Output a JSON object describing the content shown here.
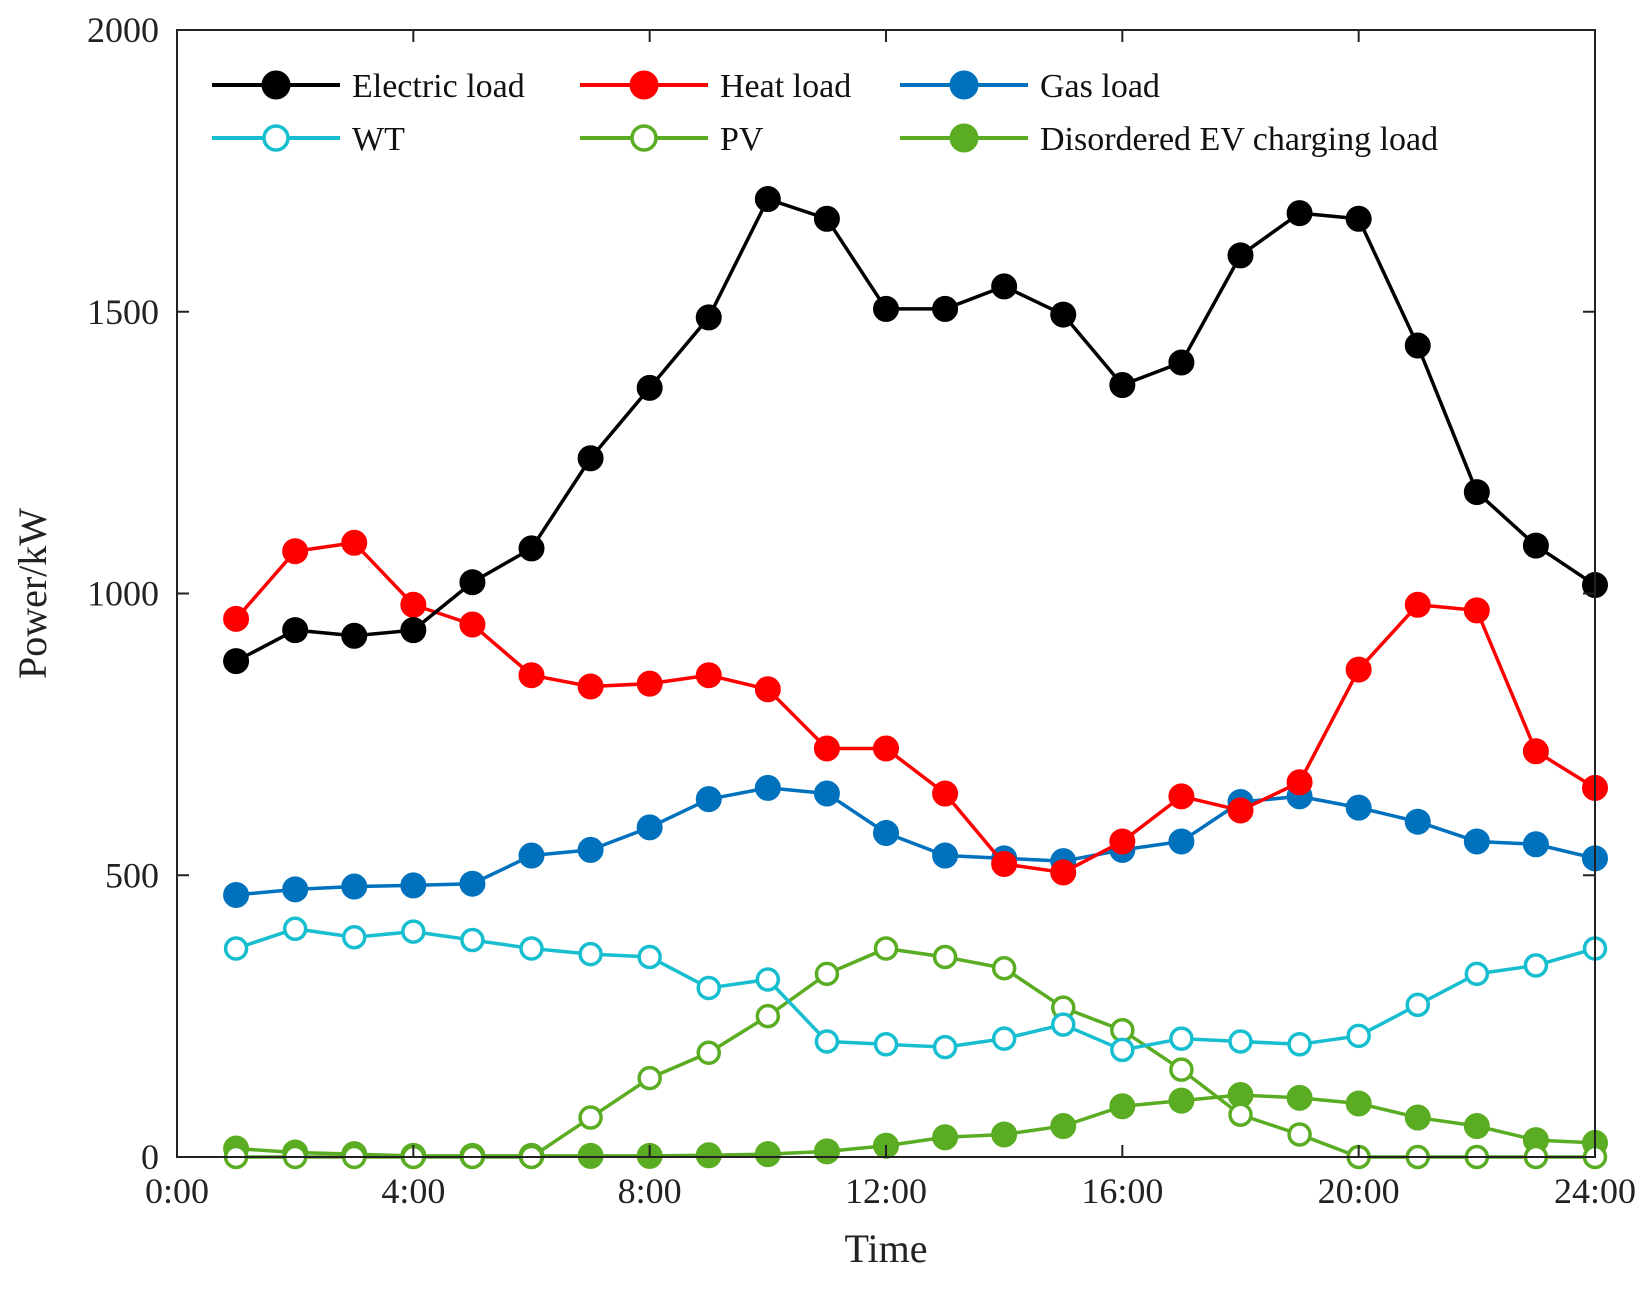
{
  "chart_data": {
    "type": "line",
    "title": "",
    "xlabel": "Time",
    "ylabel": "Power/kW",
    "xlim": [
      0,
      24
    ],
    "ylim": [
      0,
      2000
    ],
    "x_ticks": [
      0,
      4,
      8,
      12,
      16,
      20,
      24
    ],
    "x_tick_labels": [
      "0:00",
      "4:00",
      "8:00",
      "12:00",
      "16:00",
      "20:00",
      "24:00"
    ],
    "y_ticks": [
      0,
      500,
      1000,
      1500,
      2000
    ],
    "y_tick_labels": [
      "0",
      "500",
      "1000",
      "1500",
      "2000"
    ],
    "grid": false,
    "legend_position": "top",
    "x": [
      1,
      2,
      3,
      4,
      5,
      6,
      7,
      8,
      9,
      10,
      11,
      12,
      13,
      14,
      15,
      16,
      17,
      18,
      19,
      20,
      21,
      22,
      23,
      24
    ],
    "series": [
      {
        "name": "Electric load",
        "color": "#000000",
        "marker": "filled",
        "values": [
          880,
          935,
          925,
          935,
          1020,
          1080,
          1240,
          1365,
          1490,
          1700,
          1665,
          1505,
          1505,
          1545,
          1495,
          1370,
          1410,
          1600,
          1675,
          1665,
          1440,
          1180,
          1085,
          1015
        ]
      },
      {
        "name": "Heat load",
        "color": "#ff0000",
        "marker": "filled",
        "values": [
          955,
          1075,
          1090,
          980,
          945,
          855,
          835,
          840,
          855,
          830,
          725,
          725,
          645,
          520,
          505,
          560,
          640,
          615,
          665,
          865,
          980,
          970,
          720,
          655
        ]
      },
      {
        "name": "Gas load",
        "color": "#0072bd",
        "marker": "filled",
        "values": [
          465,
          475,
          480,
          482,
          485,
          535,
          545,
          585,
          635,
          655,
          645,
          575,
          535,
          530,
          525,
          545,
          560,
          630,
          640,
          620,
          595,
          560,
          555,
          530
        ]
      },
      {
        "name": "WT",
        "color": "#17becf",
        "marker": "open",
        "values": [
          370,
          405,
          390,
          400,
          385,
          370,
          360,
          355,
          300,
          315,
          205,
          200,
          195,
          210,
          235,
          190,
          210,
          205,
          200,
          215,
          270,
          325,
          340,
          370
        ]
      },
      {
        "name": "PV",
        "color": "#5aad22",
        "marker": "open",
        "values": [
          0,
          0,
          0,
          0,
          0,
          0,
          70,
          140,
          185,
          250,
          325,
          370,
          355,
          335,
          265,
          225,
          155,
          75,
          40,
          0,
          0,
          0,
          0,
          0
        ]
      },
      {
        "name": "Disordered EV charging load",
        "color": "#5aad22",
        "marker": "filled",
        "values": [
          15,
          8,
          5,
          2,
          2,
          2,
          2,
          2,
          3,
          5,
          10,
          20,
          35,
          40,
          55,
          90,
          100,
          110,
          105,
          95,
          70,
          55,
          30,
          25
        ]
      }
    ]
  }
}
